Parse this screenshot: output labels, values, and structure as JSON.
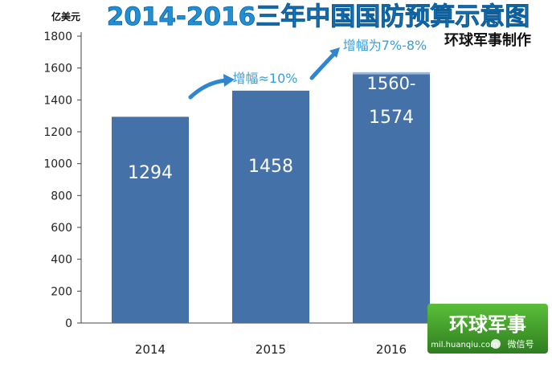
{
  "chart_data": {
    "type": "bar",
    "title": "2014-2016三年中国国防预算示意图",
    "ylabel": "亿美元",
    "xlabel": "",
    "categories": [
      "2014",
      "2015",
      "2016"
    ],
    "values": [
      1294,
      1458,
      1574
    ],
    "range_low_2016": 1560,
    "bar_labels": [
      "1294",
      "1458",
      "1574"
    ],
    "range_label_2016": "1560-",
    "ylim": [
      0,
      1800
    ],
    "yticks": [
      0,
      200,
      400,
      600,
      800,
      1000,
      1200,
      1400,
      1600,
      1800
    ],
    "grid": false,
    "legend": "none",
    "annotations": [
      {
        "text": "增幅≈10%",
        "between": [
          "2014",
          "2015"
        ]
      },
      {
        "text": "增幅为7%-8%",
        "between": [
          "2015",
          "2016"
        ]
      }
    ],
    "credit": "环球军事制作",
    "watermark": {
      "logo_text": "环球军事",
      "url_text": "mil.huanqiu.com",
      "wechat_text": "微信号"
    },
    "colors": {
      "title": "#1f8fd6",
      "bar": "#4472a8",
      "bar_range_top": "#9fb6d7",
      "bar_label": "#ffffff",
      "annotation": "#3a9fd8",
      "arrow": "#2f86d0",
      "axis": "#333333",
      "logo_bg": "#3a9a2a"
    }
  }
}
